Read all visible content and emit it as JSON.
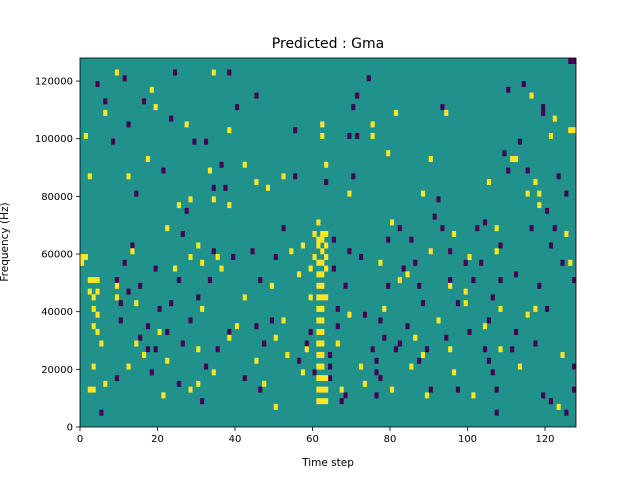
{
  "chart_data": {
    "type": "heatmap",
    "title": "Predicted : Gma",
    "xlabel": "Time step",
    "ylabel": "Frequency (Hz)",
    "xlim": [
      0,
      128
    ],
    "ylim": [
      0,
      128000
    ],
    "xticks": [
      "0",
      "20",
      "40",
      "60",
      "80",
      "100",
      "120"
    ],
    "yticks": [
      "0",
      "20000",
      "40000",
      "60000",
      "80000",
      "100000",
      "120000"
    ],
    "grid": false,
    "legend": "none",
    "colors": {
      "background": "#21918c",
      "low": "#440154",
      "high": "#fde725"
    },
    "rows": 64,
    "columns": 128,
    "cells_high": [
      [
        0,
        56000
      ],
      [
        0,
        58000
      ],
      [
        1,
        58000
      ],
      [
        2,
        50000
      ],
      [
        2,
        46000
      ],
      [
        3,
        50000
      ],
      [
        3,
        44000
      ],
      [
        3,
        40000
      ],
      [
        3,
        34000
      ],
      [
        4,
        50000
      ],
      [
        4,
        46000
      ],
      [
        4,
        38000
      ],
      [
        4,
        32000
      ],
      [
        3,
        20000
      ],
      [
        2,
        12000
      ],
      [
        3,
        12000
      ],
      [
        1,
        100000
      ],
      [
        2,
        86000
      ],
      [
        5,
        28000
      ],
      [
        6,
        14000
      ],
      [
        6,
        108000
      ],
      [
        9,
        122000
      ],
      [
        9,
        48000
      ],
      [
        9,
        44000
      ],
      [
        12,
        86000
      ],
      [
        12,
        20000
      ],
      [
        13,
        60000
      ],
      [
        14,
        28000
      ],
      [
        14,
        42000
      ],
      [
        16,
        24000
      ],
      [
        17,
        92000
      ],
      [
        18,
        116000
      ],
      [
        19,
        110000
      ],
      [
        20,
        32000
      ],
      [
        21,
        10000
      ],
      [
        22,
        68000
      ],
      [
        22,
        22000
      ],
      [
        24,
        54000
      ],
      [
        25,
        76000
      ],
      [
        27,
        104000
      ],
      [
        28,
        78000
      ],
      [
        28,
        58000
      ],
      [
        30,
        62000
      ],
      [
        30,
        26000
      ],
      [
        30,
        14000
      ],
      [
        31,
        56000
      ],
      [
        31,
        40000
      ],
      [
        33,
        88000
      ],
      [
        34,
        78000
      ],
      [
        34,
        18000
      ],
      [
        35,
        58000
      ],
      [
        36,
        54000
      ],
      [
        38,
        76000
      ],
      [
        38,
        102000
      ],
      [
        40,
        34000
      ],
      [
        42,
        90000
      ],
      [
        45,
        84000
      ],
      [
        47,
        14000
      ],
      [
        48,
        82000
      ],
      [
        49,
        48000
      ],
      [
        50,
        30000
      ],
      [
        50,
        6000
      ],
      [
        52,
        86000
      ],
      [
        52,
        36000
      ],
      [
        53,
        24000
      ],
      [
        54,
        60000
      ],
      [
        56,
        52000
      ],
      [
        57,
        18000
      ],
      [
        57,
        62000
      ],
      [
        58,
        26000
      ],
      [
        59,
        44000
      ],
      [
        59,
        54000
      ],
      [
        60,
        58000
      ],
      [
        60,
        66000
      ],
      [
        61,
        8000
      ],
      [
        61,
        12000
      ],
      [
        61,
        16000
      ],
      [
        61,
        20000
      ],
      [
        61,
        24000
      ],
      [
        61,
        28000
      ],
      [
        61,
        32000
      ],
      [
        61,
        36000
      ],
      [
        61,
        40000
      ],
      [
        61,
        44000
      ],
      [
        61,
        48000
      ],
      [
        61,
        52000
      ],
      [
        61,
        56000
      ],
      [
        61,
        62000
      ],
      [
        61,
        64000
      ],
      [
        61,
        70000
      ],
      [
        62,
        8000
      ],
      [
        62,
        12000
      ],
      [
        62,
        16000
      ],
      [
        62,
        20000
      ],
      [
        62,
        24000
      ],
      [
        62,
        28000
      ],
      [
        62,
        32000
      ],
      [
        62,
        36000
      ],
      [
        62,
        40000
      ],
      [
        62,
        44000
      ],
      [
        62,
        48000
      ],
      [
        62,
        52000
      ],
      [
        62,
        56000
      ],
      [
        62,
        60000
      ],
      [
        62,
        64000
      ],
      [
        62,
        66000
      ],
      [
        63,
        8000
      ],
      [
        63,
        12000
      ],
      [
        63,
        16000
      ],
      [
        63,
        44000
      ],
      [
        63,
        54000
      ],
      [
        63,
        58000
      ],
      [
        63,
        62000
      ],
      [
        63,
        66000
      ],
      [
        62,
        100000
      ],
      [
        62,
        104000
      ],
      [
        63,
        90000
      ],
      [
        66,
        28000
      ],
      [
        67,
        12000
      ],
      [
        69,
        38000
      ],
      [
        69,
        80000
      ],
      [
        72,
        20000
      ],
      [
        73,
        14000
      ],
      [
        75,
        100000
      ],
      [
        75,
        104000
      ],
      [
        77,
        56000
      ],
      [
        78,
        40000
      ],
      [
        79,
        94000
      ],
      [
        80,
        70000
      ],
      [
        80,
        12000
      ],
      [
        81,
        108000
      ],
      [
        82,
        50000
      ],
      [
        84,
        52000
      ],
      [
        85,
        20000
      ],
      [
        86,
        30000
      ],
      [
        88,
        80000
      ],
      [
        89,
        10000
      ],
      [
        90,
        92000
      ],
      [
        90,
        60000
      ],
      [
        94,
        108000
      ],
      [
        95,
        48000
      ],
      [
        95,
        26000
      ],
      [
        96,
        18000
      ],
      [
        99,
        46000
      ],
      [
        99,
        42000
      ],
      [
        100,
        58000
      ],
      [
        101,
        10000
      ],
      [
        104,
        34000
      ],
      [
        105,
        84000
      ],
      [
        107,
        68000
      ],
      [
        107,
        60000
      ],
      [
        108,
        40000
      ],
      [
        111,
        92000
      ],
      [
        112,
        92000
      ],
      [
        113,
        20000
      ],
      [
        115,
        80000
      ],
      [
        115,
        38000
      ],
      [
        117,
        40000
      ],
      [
        117,
        84000
      ],
      [
        118,
        80000
      ],
      [
        118,
        76000
      ],
      [
        121,
        100000
      ],
      [
        122,
        106000
      ],
      [
        123,
        6000
      ],
      [
        124,
        24000
      ],
      [
        125,
        66000
      ],
      [
        126,
        102000
      ],
      [
        127,
        102000
      ],
      [
        126,
        56000
      ],
      [
        28,
        12000
      ],
      [
        34,
        122000
      ],
      [
        38,
        30000
      ],
      [
        42,
        44000
      ],
      [
        45,
        22000
      ],
      [
        116,
        114000
      ],
      [
        108,
        26000
      ],
      [
        88,
        24000
      ],
      [
        92,
        36000
      ],
      [
        96,
        66000
      ]
    ],
    "cells_low": [
      [
        4,
        118000
      ],
      [
        5,
        4000
      ],
      [
        6,
        112000
      ],
      [
        8,
        98000
      ],
      [
        9,
        50000
      ],
      [
        9,
        16000
      ],
      [
        10,
        42000
      ],
      [
        10,
        36000
      ],
      [
        11,
        56000
      ],
      [
        11,
        120000
      ],
      [
        12,
        46000
      ],
      [
        12,
        104000
      ],
      [
        13,
        62000
      ],
      [
        14,
        80000
      ],
      [
        15,
        30000
      ],
      [
        15,
        48000
      ],
      [
        16,
        112000
      ],
      [
        17,
        34000
      ],
      [
        17,
        26000
      ],
      [
        18,
        18000
      ],
      [
        19,
        54000
      ],
      [
        19,
        26000
      ],
      [
        20,
        40000
      ],
      [
        21,
        88000
      ],
      [
        22,
        32000
      ],
      [
        23,
        106000
      ],
      [
        23,
        42000
      ],
      [
        24,
        122000
      ],
      [
        25,
        50000
      ],
      [
        25,
        14000
      ],
      [
        26,
        66000
      ],
      [
        26,
        28000
      ],
      [
        27,
        74000
      ],
      [
        28,
        36000
      ],
      [
        30,
        44000
      ],
      [
        31,
        8000
      ],
      [
        32,
        20000
      ],
      [
        32,
        98000
      ],
      [
        33,
        50000
      ],
      [
        34,
        82000
      ],
      [
        34,
        60000
      ],
      [
        35,
        26000
      ],
      [
        36,
        90000
      ],
      [
        37,
        82000
      ],
      [
        38,
        32000
      ],
      [
        38,
        122000
      ],
      [
        39,
        58000
      ],
      [
        40,
        110000
      ],
      [
        42,
        16000
      ],
      [
        44,
        60000
      ],
      [
        45,
        34000
      ],
      [
        46,
        12000
      ],
      [
        46,
        50000
      ],
      [
        47,
        28000
      ],
      [
        49,
        36000
      ],
      [
        50,
        58000
      ],
      [
        52,
        68000
      ],
      [
        55,
        102000
      ],
      [
        56,
        22000
      ],
      [
        58,
        28000
      ],
      [
        59,
        32000
      ],
      [
        60,
        18000
      ],
      [
        63,
        84000
      ],
      [
        64,
        24000
      ],
      [
        64,
        20000
      ],
      [
        64,
        16000
      ],
      [
        65,
        64000
      ],
      [
        65,
        54000
      ],
      [
        66,
        34000
      ],
      [
        66,
        40000
      ],
      [
        67,
        8000
      ],
      [
        68,
        10000
      ],
      [
        68,
        48000
      ],
      [
        69,
        60000
      ],
      [
        70,
        86000
      ],
      [
        70,
        110000
      ],
      [
        71,
        100000
      ],
      [
        71,
        114000
      ],
      [
        72,
        58000
      ],
      [
        73,
        38000
      ],
      [
        74,
        120000
      ],
      [
        75,
        26000
      ],
      [
        76,
        10000
      ],
      [
        76,
        18000
      ],
      [
        76,
        22000
      ],
      [
        77,
        36000
      ],
      [
        77,
        16000
      ],
      [
        79,
        64000
      ],
      [
        79,
        48000
      ],
      [
        81,
        26000
      ],
      [
        82,
        28000
      ],
      [
        82,
        68000
      ],
      [
        83,
        54000
      ],
      [
        84,
        34000
      ],
      [
        85,
        64000
      ],
      [
        86,
        56000
      ],
      [
        87,
        22000
      ],
      [
        87,
        48000
      ],
      [
        88,
        42000
      ],
      [
        89,
        26000
      ],
      [
        91,
        72000
      ],
      [
        92,
        78000
      ],
      [
        93,
        68000
      ],
      [
        94,
        30000
      ],
      [
        95,
        50000
      ],
      [
        95,
        60000
      ],
      [
        97,
        42000
      ],
      [
        97,
        12000
      ],
      [
        99,
        56000
      ],
      [
        100,
        32000
      ],
      [
        101,
        50000
      ],
      [
        102,
        68000
      ],
      [
        103,
        56000
      ],
      [
        104,
        26000
      ],
      [
        105,
        36000
      ],
      [
        105,
        22000
      ],
      [
        106,
        44000
      ],
      [
        107,
        12000
      ],
      [
        107,
        4000
      ],
      [
        108,
        50000
      ],
      [
        108,
        62000
      ],
      [
        109,
        94000
      ],
      [
        110,
        88000
      ],
      [
        110,
        116000
      ],
      [
        111,
        26000
      ],
      [
        112,
        32000
      ],
      [
        112,
        52000
      ],
      [
        114,
        118000
      ],
      [
        115,
        88000
      ],
      [
        116,
        68000
      ],
      [
        117,
        28000
      ],
      [
        118,
        48000
      ],
      [
        119,
        110000
      ],
      [
        119,
        108000
      ],
      [
        119,
        10000
      ],
      [
        120,
        40000
      ],
      [
        121,
        8000
      ],
      [
        121,
        62000
      ],
      [
        122,
        68000
      ],
      [
        123,
        86000
      ],
      [
        124,
        56000
      ],
      [
        125,
        80000
      ],
      [
        125,
        4000
      ],
      [
        126,
        126000
      ],
      [
        127,
        126000
      ],
      [
        127,
        50000
      ],
      [
        127,
        12000
      ],
      [
        127,
        20000
      ],
      [
        29,
        98000
      ],
      [
        55,
        86000
      ],
      [
        69,
        100000
      ],
      [
        78,
        30000
      ],
      [
        90,
        12000
      ],
      [
        93,
        110000
      ],
      [
        104,
        70000
      ],
      [
        106,
        18000
      ],
      [
        113,
        98000
      ],
      [
        120,
        74000
      ],
      [
        45,
        114000
      ]
    ]
  }
}
